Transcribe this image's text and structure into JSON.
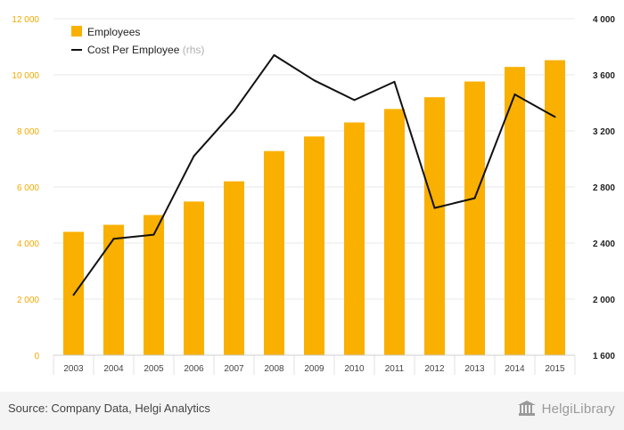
{
  "chart_data": {
    "type": "bar",
    "categories": [
      "2003",
      "2004",
      "2005",
      "2006",
      "2007",
      "2008",
      "2009",
      "2010",
      "2011",
      "2012",
      "2013",
      "2014",
      "2015"
    ],
    "series": [
      {
        "name": "Employees",
        "type": "bar",
        "axis": "left",
        "color": "#f9b000",
        "values": [
          4400,
          4650,
          5000,
          5480,
          6200,
          7280,
          7800,
          8300,
          8780,
          9200,
          9760,
          10280,
          10520
        ]
      },
      {
        "name": "Cost Per Employee",
        "name_suffix": "(rhs)",
        "type": "line",
        "axis": "right",
        "color": "#111111",
        "values": [
          2030,
          2430,
          2460,
          3020,
          3340,
          3740,
          3560,
          3420,
          3550,
          2650,
          2720,
          3460,
          3300
        ]
      }
    ],
    "y_left": {
      "min": 0,
      "max": 12000,
      "ticks": [
        "0",
        "2 000",
        "4 000",
        "6 000",
        "8 000",
        "10 000",
        "12 000"
      ]
    },
    "y_right": {
      "min": 1600,
      "max": 4000,
      "ticks": [
        "1 600",
        "2 000",
        "2 400",
        "2 800",
        "3 200",
        "3 600",
        "4 000"
      ]
    },
    "grid": true,
    "legend_position": "top-left"
  },
  "footer": {
    "source": "Source: Company Data, Helgi Analytics",
    "brand": "HelgiLibrary"
  }
}
